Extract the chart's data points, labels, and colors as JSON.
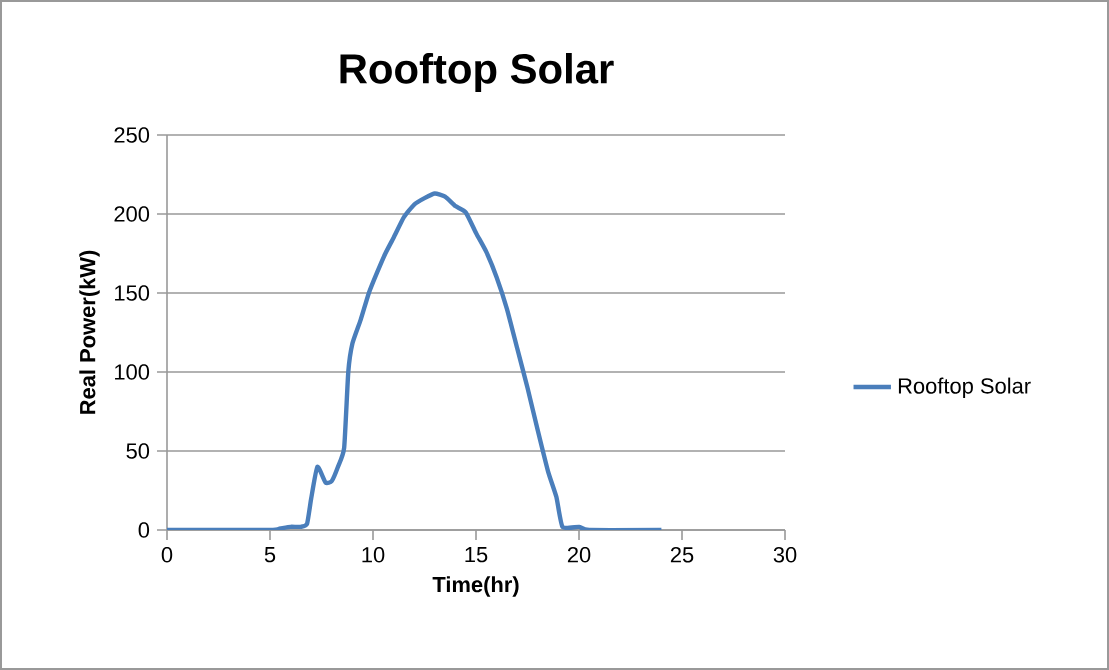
{
  "chart_data": {
    "type": "line",
    "title": "Rooftop Solar",
    "xlabel": "Time(hr)",
    "ylabel": "Real Power(kW)",
    "xlim": [
      0,
      30
    ],
    "xticks": [
      0,
      5,
      10,
      15,
      20,
      25,
      30
    ],
    "ylim": [
      0,
      250
    ],
    "yticks": [
      0,
      50,
      100,
      150,
      200,
      250
    ],
    "grid": "y",
    "legend": "right",
    "marker": "none",
    "line_style": "solid",
    "series": [
      {
        "name": "Rooftop Solar",
        "color": "#4a7ebb",
        "x": [
          0,
          5,
          5.5,
          6,
          6.5,
          6.8,
          7,
          7.3,
          7.7,
          8,
          8.3,
          8.6,
          8.8,
          9,
          9.4,
          9.8,
          10.2,
          10.6,
          11,
          11.5,
          12,
          12.5,
          13,
          13.5,
          14,
          14.5,
          15,
          15.5,
          16,
          16.5,
          17,
          17.5,
          18,
          18.5,
          18.9,
          19.2,
          20,
          20.5,
          24
        ],
        "values": [
          0,
          0,
          1,
          2,
          2,
          4,
          20,
          40,
          30,
          31,
          40,
          52,
          100,
          118,
          133,
          150,
          163,
          175,
          185,
          198,
          206,
          210,
          213,
          211,
          205,
          201,
          188,
          176,
          160,
          140,
          115,
          90,
          63,
          37,
          21,
          2,
          2,
          0,
          0
        ]
      }
    ]
  }
}
